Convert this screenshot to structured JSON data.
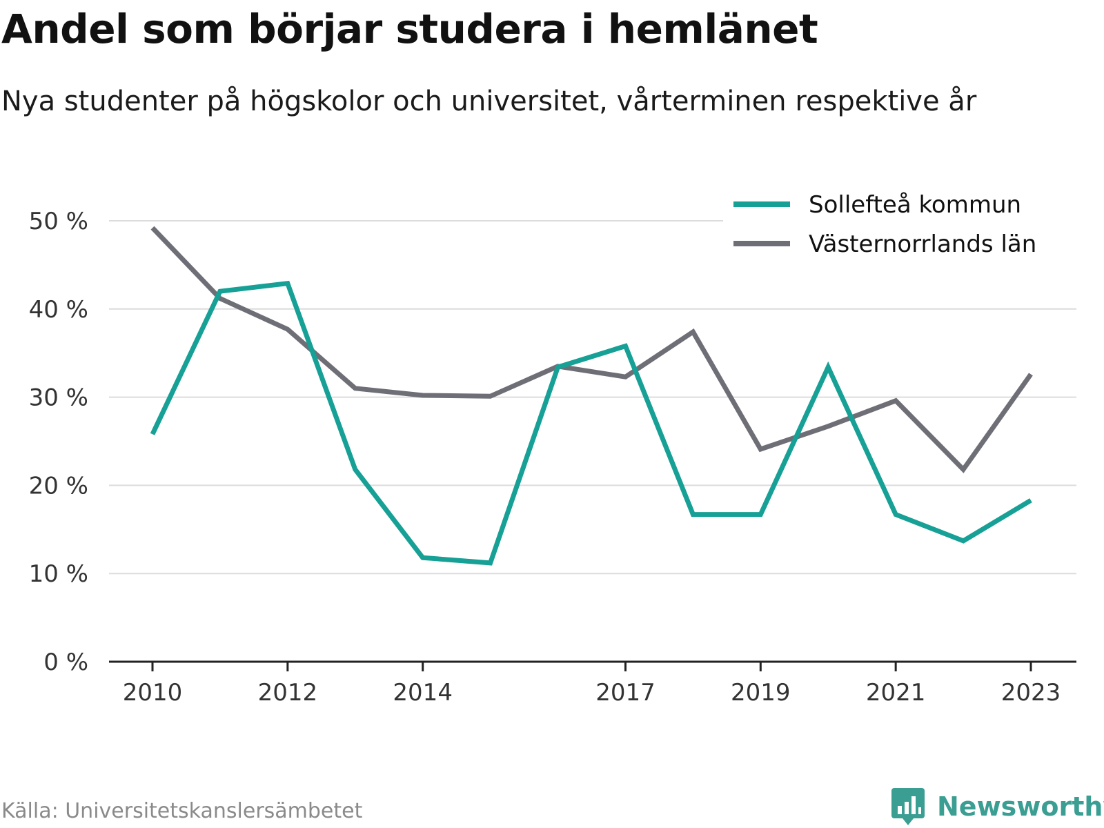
{
  "header": {
    "title": "Andel som börjar studera i hemlänet",
    "subtitle": "Nya studenter på högskolor och universitet, vårterminen respektive år"
  },
  "footer": {
    "source": "Källa: Universitetskanslersämbetet",
    "brand": "Newsworthy",
    "brand_icon": "bar-chart-speech-bubble-icon"
  },
  "chart_data": {
    "type": "line",
    "x": [
      2010,
      2011,
      2012,
      2013,
      2014,
      2015,
      2016,
      2017,
      2018,
      2019,
      2020,
      2021,
      2022,
      2023
    ],
    "x_tick_labels": [
      "2010",
      "2012",
      "2014",
      "2017",
      "2019",
      "2021",
      "2023"
    ],
    "y_tick_labels": [
      "0 %",
      "10 %",
      "20 %",
      "30 %",
      "40 %",
      "50 %"
    ],
    "ylim": [
      0,
      50
    ],
    "grid": true,
    "legend_position": "top-right",
    "series": [
      {
        "name": "Sollefteå kommun",
        "color": "#17a096",
        "values": [
          25.8,
          42.0,
          42.9,
          21.8,
          11.8,
          11.2,
          33.4,
          35.8,
          16.7,
          16.7,
          33.4,
          16.7,
          13.7,
          18.3
        ]
      },
      {
        "name": "Västernorrlands län",
        "color": "#6e6e76",
        "values": [
          49.2,
          41.2,
          37.7,
          31.0,
          30.2,
          30.1,
          33.5,
          32.3,
          37.4,
          24.1,
          26.7,
          29.6,
          21.8,
          32.6
        ]
      }
    ]
  }
}
